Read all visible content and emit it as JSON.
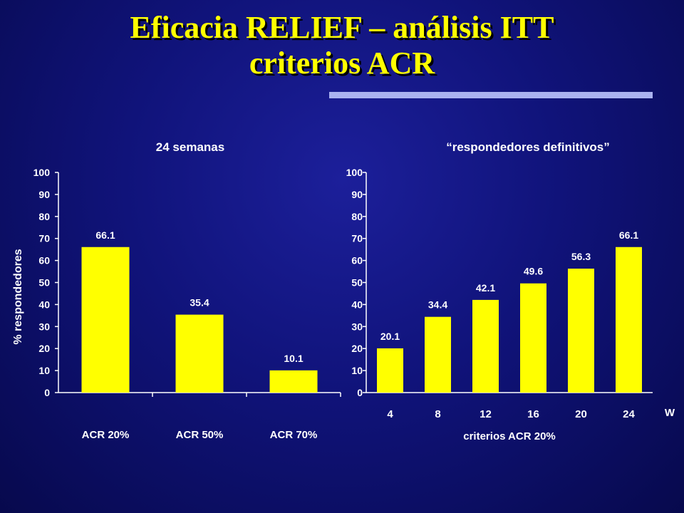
{
  "slide": {
    "title_line1": "Eficacia RELIEF – análisis ITT",
    "title_line2": "criterios ACR"
  },
  "colors": {
    "bar": "#ffff00",
    "title": "#ffff00",
    "text": "#ffffff",
    "rule": "#aab2f0"
  },
  "chart_data": [
    {
      "type": "bar",
      "title": "24 semanas",
      "categories": [
        "ACR 20%",
        "ACR 50%",
        "ACR 70%"
      ],
      "values": [
        66.1,
        35.4,
        10.1
      ],
      "data_labels": [
        "66.1",
        "35.4",
        "10.1"
      ],
      "xlabel": "",
      "ylabel": "% respondedores",
      "ylim": [
        0,
        100
      ],
      "yticks": [
        0,
        10,
        20,
        30,
        40,
        50,
        60,
        70,
        80,
        90,
        100
      ],
      "grid": false,
      "legend": "none"
    },
    {
      "type": "bar",
      "title": "“respondedores definitivos”",
      "categories": [
        "4",
        "8",
        "12",
        "16",
        "20",
        "24"
      ],
      "values": [
        20.1,
        34.4,
        42.1,
        49.6,
        56.3,
        66.1
      ],
      "data_labels": [
        "20.1",
        "34.4",
        "42.1",
        "49.6",
        "56.3",
        "66.1"
      ],
      "xlabel": "criterios ACR 20%",
      "x_unit": "W",
      "ylabel": "",
      "ylim": [
        0,
        100
      ],
      "yticks": [
        0,
        10,
        20,
        30,
        40,
        50,
        60,
        70,
        80,
        90,
        100
      ],
      "grid": false,
      "legend": "none"
    }
  ]
}
